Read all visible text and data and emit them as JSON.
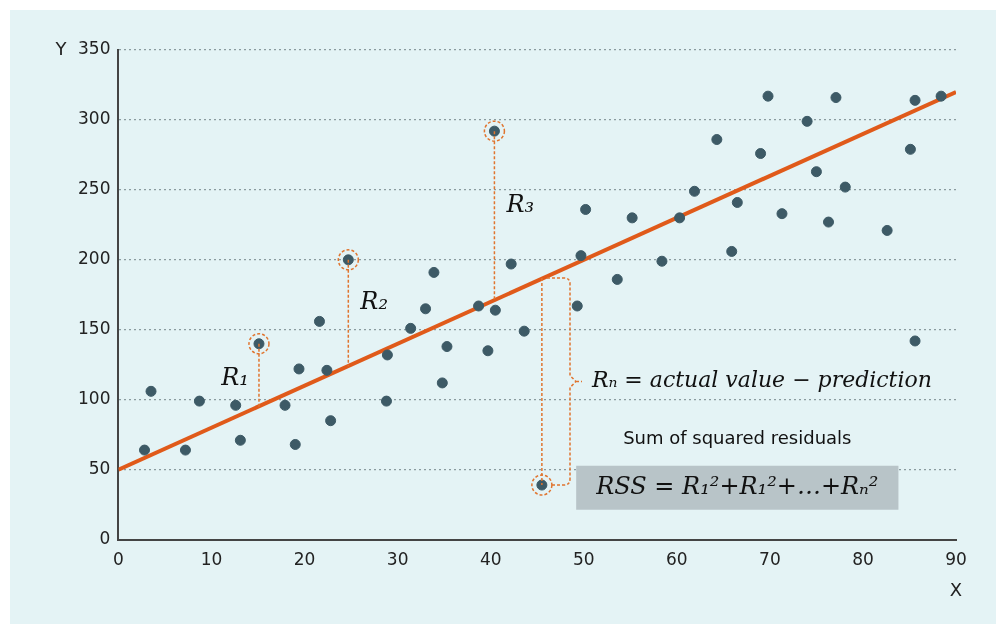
{
  "chart_data": {
    "type": "scatter",
    "xlabel": "X",
    "ylabel": "Y",
    "xlim": [
      0,
      90
    ],
    "ylim": [
      0,
      350
    ],
    "xticks": [
      0,
      10,
      20,
      30,
      40,
      50,
      60,
      70,
      80,
      90
    ],
    "yticks": [
      0,
      50,
      100,
      150,
      200,
      250,
      300,
      350
    ],
    "grid": "y",
    "legend": false,
    "marker": "circle",
    "series": [
      {
        "color": "#3d5a66",
        "x": [
          2.8,
          3.5,
          7.2,
          8.7,
          12.6,
          13.1,
          15.1,
          17.9,
          19.0,
          19.4,
          21.6,
          22.4,
          22.8,
          24.7,
          28.8,
          28.9,
          31.4,
          33.0,
          33.9,
          34.8,
          35.3,
          38.7,
          39.7,
          40.4,
          40.5,
          42.2,
          43.6,
          45.5,
          49.3,
          49.7,
          50.2,
          53.6,
          55.2,
          58.4,
          60.3,
          61.9,
          64.3,
          65.9,
          66.5,
          69.0,
          69.8,
          71.3,
          74.0,
          75.0,
          76.3,
          77.1,
          78.1,
          82.6,
          85.1,
          85.6,
          85.6,
          88.4
        ],
        "values": [
          64,
          106,
          64,
          99,
          96,
          71,
          140,
          96,
          68,
          122,
          156,
          121,
          85,
          200,
          99,
          132,
          151,
          165,
          191,
          112,
          138,
          167,
          135,
          292,
          164,
          197,
          149,
          39,
          167,
          203,
          236,
          186,
          230,
          199,
          230,
          249,
          286,
          206,
          241,
          276,
          317,
          233,
          299,
          263,
          227,
          316,
          252,
          221,
          279,
          142,
          314,
          317
        ],
        "errors": [
          null,
          null,
          null,
          null,
          null,
          null,
          [
            95,
            140
          ],
          null,
          null,
          null,
          null,
          null,
          null,
          [
            124,
            200
          ],
          null,
          null,
          null,
          null,
          null,
          null,
          null,
          null,
          null,
          [
            171,
            292
          ],
          null,
          null,
          null,
          [
            39,
            187
          ],
          null,
          null,
          null,
          null,
          null,
          null,
          null,
          null,
          null,
          null,
          null,
          null,
          null,
          null,
          null,
          null,
          null,
          null,
          null,
          null,
          null,
          null,
          null,
          null
        ]
      },
      {
        "type": "line",
        "color": "#e05a1a",
        "x": [
          0,
          90
        ],
        "values": [
          50,
          320
        ],
        "marker": "none"
      }
    ],
    "annotations": [
      "R₁",
      "R₂",
      "R₃",
      "Rₙ = actual value − prediction",
      "Sum of squared residuals",
      "RSS = R₁²+R₁²+…+Rₙ²"
    ]
  }
}
